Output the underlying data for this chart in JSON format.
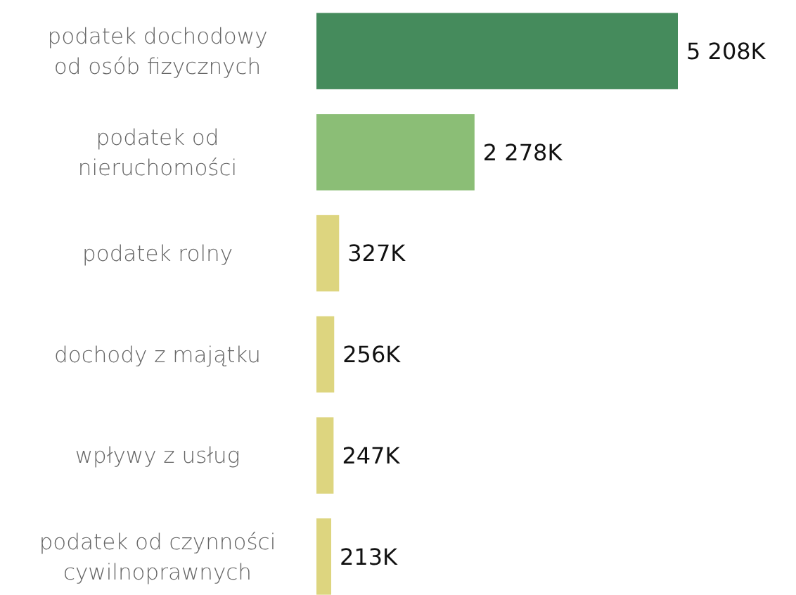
{
  "chart_data": {
    "type": "bar",
    "orientation": "horizontal",
    "categories": [
      "podatek dochodowy od osób fizycznych",
      "podatek od nieruchomości",
      "podatek rolny",
      "dochody z majątku",
      "wpływy z usług",
      "podatek od czynności cywilnoprawnych"
    ],
    "values": [
      5208,
      2278,
      327,
      256,
      247,
      213
    ],
    "colors": [
      "#458b5c",
      "#8bbe76",
      "#ddd57f",
      "#ddd57f",
      "#ddd57f",
      "#ddd57f"
    ],
    "value_labels": [
      "5 208K",
      "2 278K",
      "327K",
      "256K",
      "247K",
      "213K"
    ]
  }
}
